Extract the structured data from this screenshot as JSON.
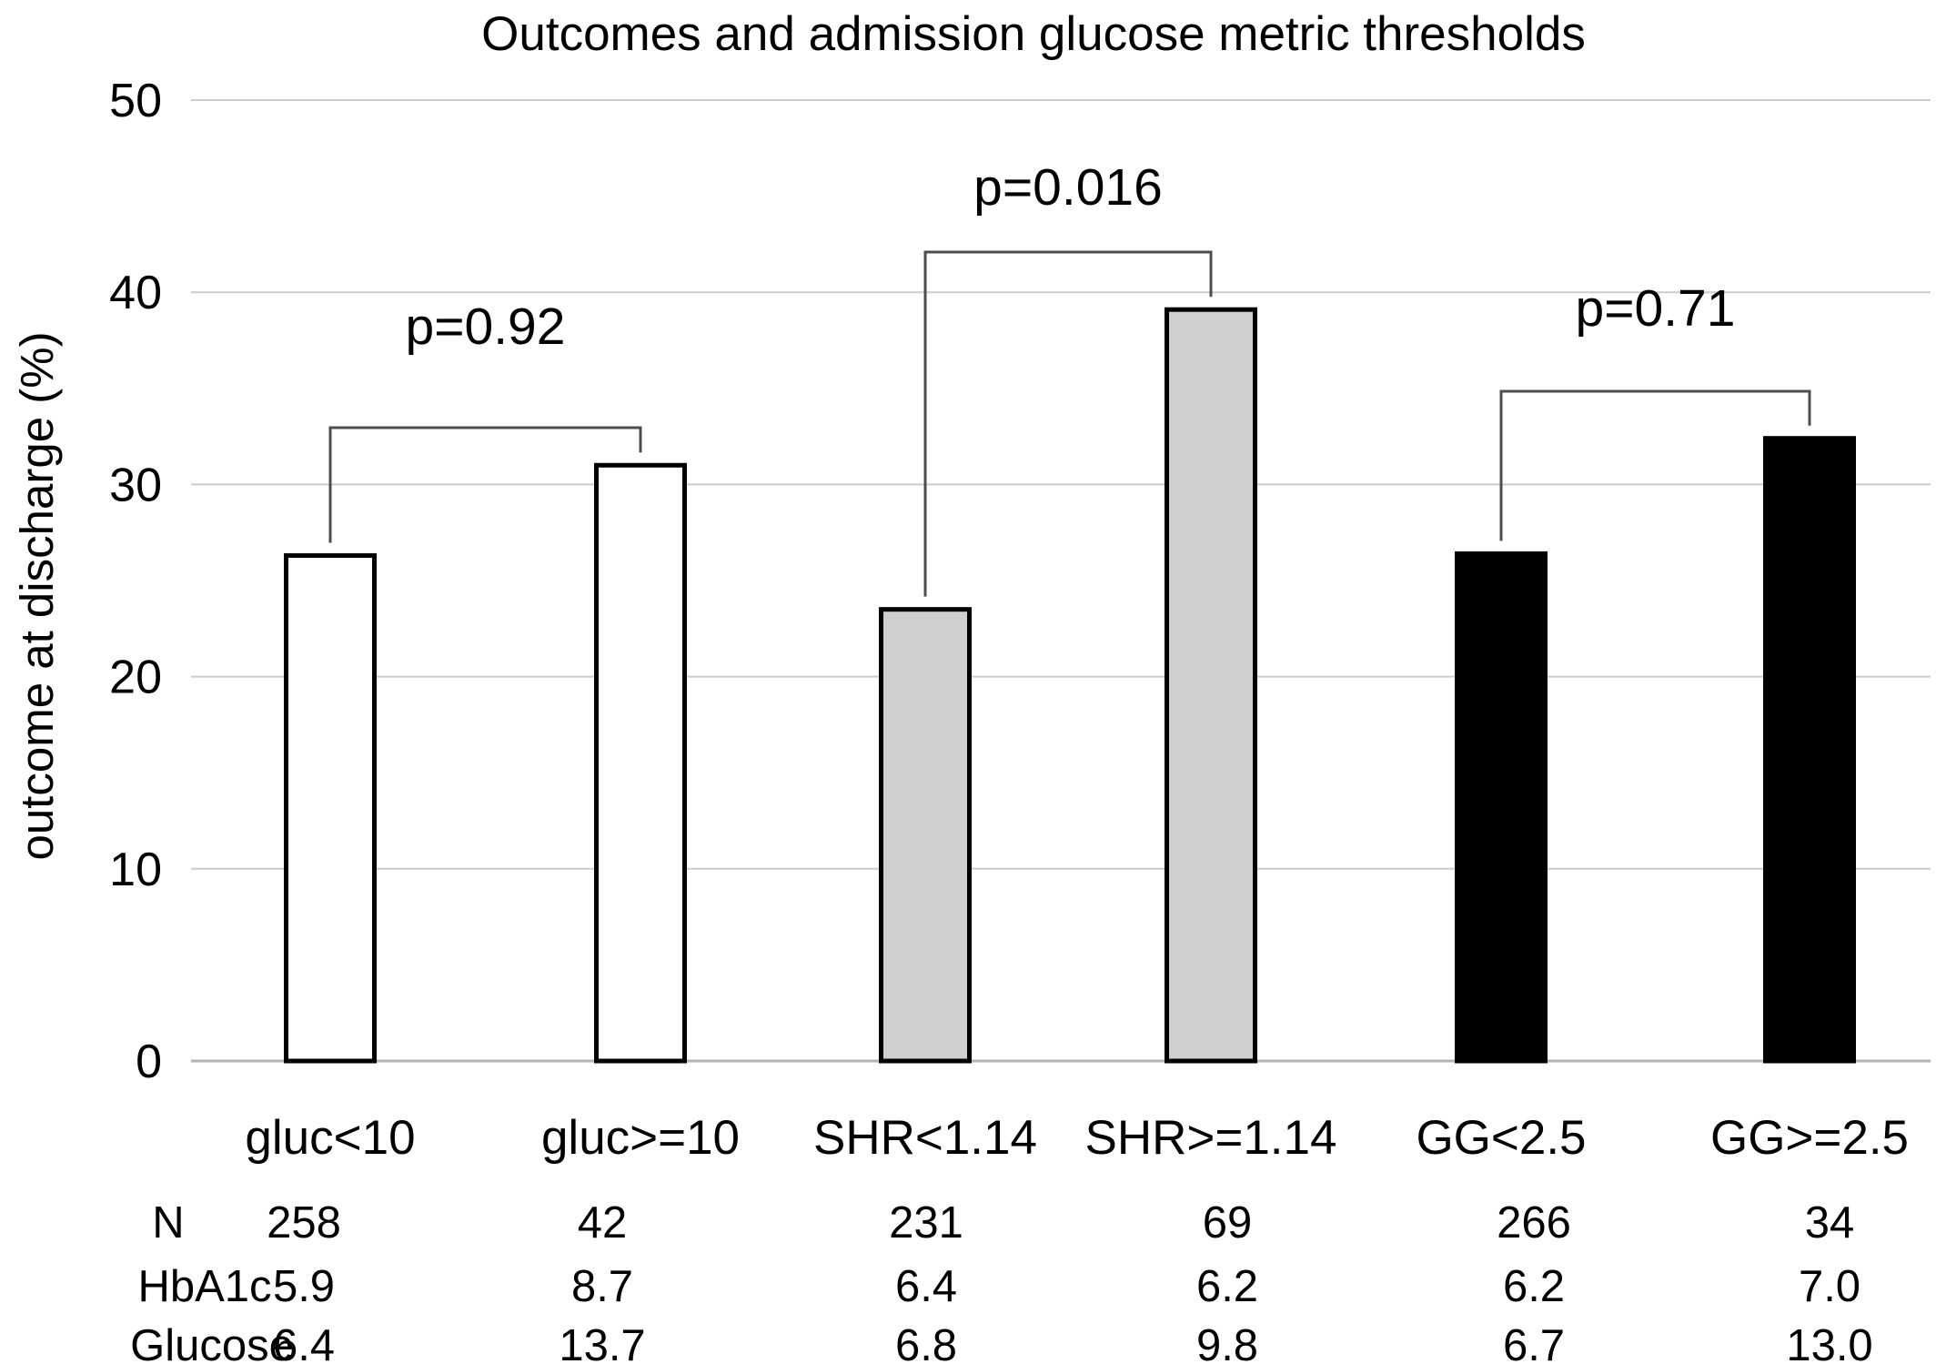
{
  "chart_data": {
    "type": "bar",
    "title": "Outcomes and admission glucose metric thresholds",
    "xlabel": "",
    "ylabel": "outcome at discharge (%)",
    "ylim": [
      0,
      50
    ],
    "yticks": [
      0,
      10,
      20,
      30,
      40,
      50
    ],
    "grid": true,
    "categories": [
      "gluc<10",
      "gluc>=10",
      "SHR<1.14",
      "SHR>=1.14",
      "GG<2.5",
      "GG>=2.5"
    ],
    "values": [
      26.3,
      31.0,
      23.5,
      39.1,
      26.4,
      32.4
    ],
    "bar_fills": [
      "#ffffff",
      "#ffffff",
      "#cfcfcf",
      "#cfcfcf",
      "#000000",
      "#000000"
    ],
    "comparisons": [
      {
        "between": [
          0,
          1
        ],
        "label": "p=0.92"
      },
      {
        "between": [
          2,
          3
        ],
        "label": "p=0.016"
      },
      {
        "between": [
          4,
          5
        ],
        "label": "p=0.71"
      }
    ],
    "table": {
      "row_labels": [
        "N",
        "HbA1c",
        "Glucose"
      ],
      "rows": [
        [
          "258",
          "42",
          "231",
          "69",
          "266",
          "34"
        ],
        [
          "5.9",
          "8.7",
          "6.4",
          "6.2",
          "6.2",
          "7.0"
        ],
        [
          "6.4",
          "13.7",
          "6.8",
          "9.8",
          "6.7",
          "13.0"
        ]
      ]
    }
  },
  "colors": {
    "grid": "#cccccc",
    "axis": "#b3b3b3",
    "bar_outline": "#000000",
    "bracket": "#4d4d4d"
  }
}
